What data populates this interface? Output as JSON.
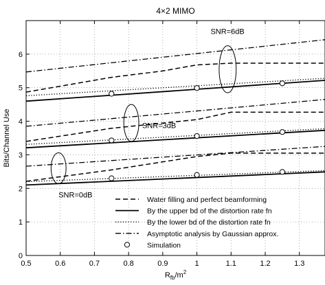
{
  "chart_data": {
    "type": "line",
    "title": "4×2 MIMO",
    "xlabel_base": "R",
    "xlabel_sub": "fb",
    "xlabel_tail": "/m",
    "xlabel_sup": "2",
    "ylabel": "Bits/Channel Use",
    "xlim": [
      0.5,
      1.375
    ],
    "ylim": [
      0,
      7
    ],
    "x_ticks": [
      0.5,
      0.6,
      0.7,
      0.8,
      0.9,
      1.0,
      1.1,
      1.2,
      1.3
    ],
    "x_tick_labels": [
      "0.5",
      "0.6",
      "0.7",
      "0.8",
      "0.9",
      "1",
      "1.1",
      "1.2",
      "1.3"
    ],
    "y_ticks": [
      0,
      1,
      2,
      3,
      4,
      5,
      6
    ],
    "y_tick_labels": [
      "0",
      "1",
      "2",
      "3",
      "4",
      "5",
      "6"
    ],
    "grid": true,
    "legend_position": "bottom-right",
    "legend": [
      {
        "label": "Water filling and perfect beamforming",
        "style": "dashed"
      },
      {
        "label": "By the upper bd of the distortion rate fn",
        "style": "solid"
      },
      {
        "label": "By the lower bd of the distortion rate fn",
        "style": "dotted"
      },
      {
        "label": "Asymptotic analysis by Gaussian approx.",
        "style": "dashdot"
      },
      {
        "label": "Simulation",
        "style": "marker"
      }
    ],
    "groups": [
      {
        "annotation": "SNR=0dB",
        "water_filling": [
          [
            0.5,
            2.21
          ],
          [
            0.75,
            2.55
          ],
          [
            1.0,
            2.95
          ],
          [
            1.1,
            3.05
          ],
          [
            1.375,
            3.05
          ]
        ],
        "upper_bd": [
          [
            0.5,
            2.1
          ],
          [
            1.375,
            2.49
          ]
        ],
        "lower_bd": [
          [
            0.5,
            2.2
          ],
          [
            1.375,
            2.53
          ]
        ],
        "asymptotic": [
          [
            0.5,
            2.66
          ],
          [
            1.375,
            3.25
          ]
        ],
        "simulation": [
          [
            0.75,
            2.3
          ],
          [
            1.0,
            2.4
          ],
          [
            1.25,
            2.49
          ]
        ]
      },
      {
        "annotation": "SNR=3dB",
        "water_filling": [
          [
            0.5,
            3.4
          ],
          [
            0.75,
            3.79
          ],
          [
            1.0,
            4.05
          ],
          [
            1.1,
            4.27
          ],
          [
            1.375,
            4.27
          ]
        ],
        "upper_bd": [
          [
            0.5,
            3.21
          ],
          [
            1.375,
            3.73
          ]
        ],
        "lower_bd": [
          [
            0.5,
            3.31
          ],
          [
            1.375,
            3.78
          ]
        ],
        "asymptotic": [
          [
            0.5,
            3.85
          ],
          [
            1.375,
            4.65
          ]
        ],
        "simulation": [
          [
            0.75,
            3.43
          ],
          [
            1.0,
            3.56
          ],
          [
            1.25,
            3.68
          ]
        ]
      },
      {
        "annotation": "SNR=6dB",
        "water_filling": [
          [
            0.5,
            4.87
          ],
          [
            0.75,
            5.31
          ],
          [
            0.9,
            5.5
          ],
          [
            1.0,
            5.68
          ],
          [
            1.1,
            5.73
          ],
          [
            1.375,
            5.73
          ]
        ],
        "upper_bd": [
          [
            0.5,
            4.6
          ],
          [
            1.375,
            5.22
          ]
        ],
        "lower_bd": [
          [
            0.5,
            4.76
          ],
          [
            1.375,
            5.28
          ]
        ],
        "asymptotic": [
          [
            0.5,
            5.47
          ],
          [
            1.375,
            6.43
          ]
        ],
        "simulation": [
          [
            0.75,
            4.82
          ],
          [
            1.0,
            4.99
          ],
          [
            1.25,
            5.13
          ]
        ]
      }
    ],
    "ellipses": [
      {
        "label": "SNR=0dB",
        "cx": 0.595,
        "cy": 2.6,
        "rx": 0.022,
        "ry": 0.46,
        "label_x": 0.595,
        "label_y": 1.73
      },
      {
        "label": "SNR=3dB",
        "cx": 0.808,
        "cy": 3.95,
        "rx": 0.022,
        "ry": 0.55,
        "label_x": 0.84,
        "label_y": 3.8
      },
      {
        "label": "SNR=6dB",
        "cx": 1.09,
        "cy": 5.55,
        "rx": 0.025,
        "ry": 0.7,
        "label_x": 1.04,
        "label_y": 6.6
      }
    ]
  }
}
